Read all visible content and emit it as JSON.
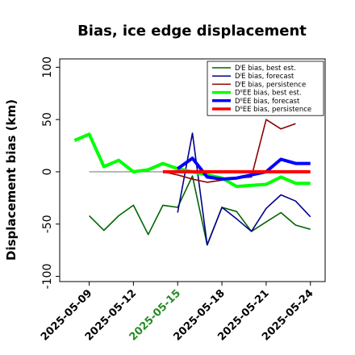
{
  "chart_data": {
    "type": "line",
    "title": "Bias, ice edge displacement",
    "xlabel": "",
    "ylabel": "Displacement bias (km)",
    "ylim": [
      -105,
      108
    ],
    "xlim": [
      "2025-05-07",
      "2025-05-25"
    ],
    "yticks": [
      100,
      50,
      0,
      -50,
      -100
    ],
    "xticks": [
      {
        "date": "2025-05-09",
        "label": "2025-05-09",
        "color": "#000000"
      },
      {
        "date": "2025-05-12",
        "label": "2025-05-12",
        "color": "#000000"
      },
      {
        "date": "2025-05-15",
        "label": "2025-05-15",
        "color": "#228B22"
      },
      {
        "date": "2025-05-18",
        "label": "2025-05-18",
        "color": "#000000"
      },
      {
        "date": "2025-05-21",
        "label": "2025-05-21",
        "color": "#000000"
      },
      {
        "date": "2025-05-24",
        "label": "2025-05-24",
        "color": "#000000"
      }
    ],
    "legend_position": "top-right",
    "series": [
      {
        "name": "DᴵE bias, best est.",
        "color": "#006400",
        "width": 1.6,
        "points": [
          [
            "2025-05-09",
            -42
          ],
          [
            "2025-05-10",
            -56
          ],
          [
            "2025-05-11",
            -42
          ],
          [
            "2025-05-12",
            -32
          ],
          [
            "2025-05-13",
            -60
          ],
          [
            "2025-05-14",
            -32
          ],
          [
            "2025-05-15",
            -34
          ],
          [
            "2025-05-16",
            -4
          ],
          [
            "2025-05-17",
            -70
          ],
          [
            "2025-05-18",
            -34
          ],
          [
            "2025-05-19",
            -38
          ],
          [
            "2025-05-20",
            -57
          ],
          [
            "2025-05-21",
            -48
          ],
          [
            "2025-05-22",
            -39
          ],
          [
            "2025-05-23",
            -51
          ],
          [
            "2025-05-24",
            -55
          ]
        ]
      },
      {
        "name": "DᴵE bias, forecast",
        "color": "#00008B",
        "width": 1.6,
        "points": [
          [
            "2025-05-15",
            -39
          ],
          [
            "2025-05-16",
            37
          ],
          [
            "2025-05-17",
            -70
          ],
          [
            "2025-05-18",
            -34
          ],
          [
            "2025-05-19",
            -45
          ],
          [
            "2025-05-20",
            -57
          ],
          [
            "2025-05-21",
            -35
          ],
          [
            "2025-05-22",
            -22
          ],
          [
            "2025-05-23",
            -28
          ],
          [
            "2025-05-24",
            -43
          ]
        ]
      },
      {
        "name": "DᴵE bias, persistence",
        "color": "#8B0000",
        "width": 1.6,
        "points": [
          [
            "2025-05-14",
            0
          ],
          [
            "2025-05-15",
            -3
          ],
          [
            "2025-05-16",
            -7
          ],
          [
            "2025-05-17",
            -10
          ],
          [
            "2025-05-18",
            -8
          ],
          [
            "2025-05-19",
            -6
          ],
          [
            "2025-05-20",
            -5
          ],
          [
            "2025-05-21",
            50
          ],
          [
            "2025-05-22",
            41
          ],
          [
            "2025-05-23",
            46
          ]
        ]
      },
      {
        "name": "DᴵᴵEE bias, best est.",
        "color": "#00FF00",
        "width": 4,
        "points": [
          [
            "2025-05-08",
            30
          ],
          [
            "2025-05-09",
            36
          ],
          [
            "2025-05-10",
            5
          ],
          [
            "2025-05-11",
            11
          ],
          [
            "2025-05-12",
            0
          ],
          [
            "2025-05-13",
            2
          ],
          [
            "2025-05-14",
            8
          ],
          [
            "2025-05-15",
            3
          ],
          [
            "2025-05-16",
            0
          ],
          [
            "2025-05-17",
            -3
          ],
          [
            "2025-05-18",
            -6
          ],
          [
            "2025-05-19",
            -14
          ],
          [
            "2025-05-20",
            -13
          ],
          [
            "2025-05-21",
            -12
          ],
          [
            "2025-05-22",
            -5
          ],
          [
            "2025-05-23",
            -11
          ],
          [
            "2025-05-24",
            -11
          ]
        ]
      },
      {
        "name": "DᴵᴵEE bias, forecast",
        "color": "#0000FF",
        "width": 4,
        "points": [
          [
            "2025-05-15",
            3
          ],
          [
            "2025-05-16",
            13
          ],
          [
            "2025-05-17",
            -5
          ],
          [
            "2025-05-18",
            -7
          ],
          [
            "2025-05-19",
            -6
          ],
          [
            "2025-05-20",
            -3
          ],
          [
            "2025-05-21",
            0
          ],
          [
            "2025-05-22",
            12
          ],
          [
            "2025-05-23",
            8
          ],
          [
            "2025-05-24",
            8
          ]
        ]
      },
      {
        "name": "DᴵᴵEE bias, persistence",
        "color": "#FF0000",
        "width": 4,
        "points": [
          [
            "2025-05-14",
            0
          ],
          [
            "2025-05-24",
            0
          ]
        ]
      }
    ],
    "reference_line": {
      "color": "#808080",
      "points": [
        [
          "2025-05-09",
          0
        ],
        [
          "2025-05-16",
          0
        ]
      ]
    }
  }
}
